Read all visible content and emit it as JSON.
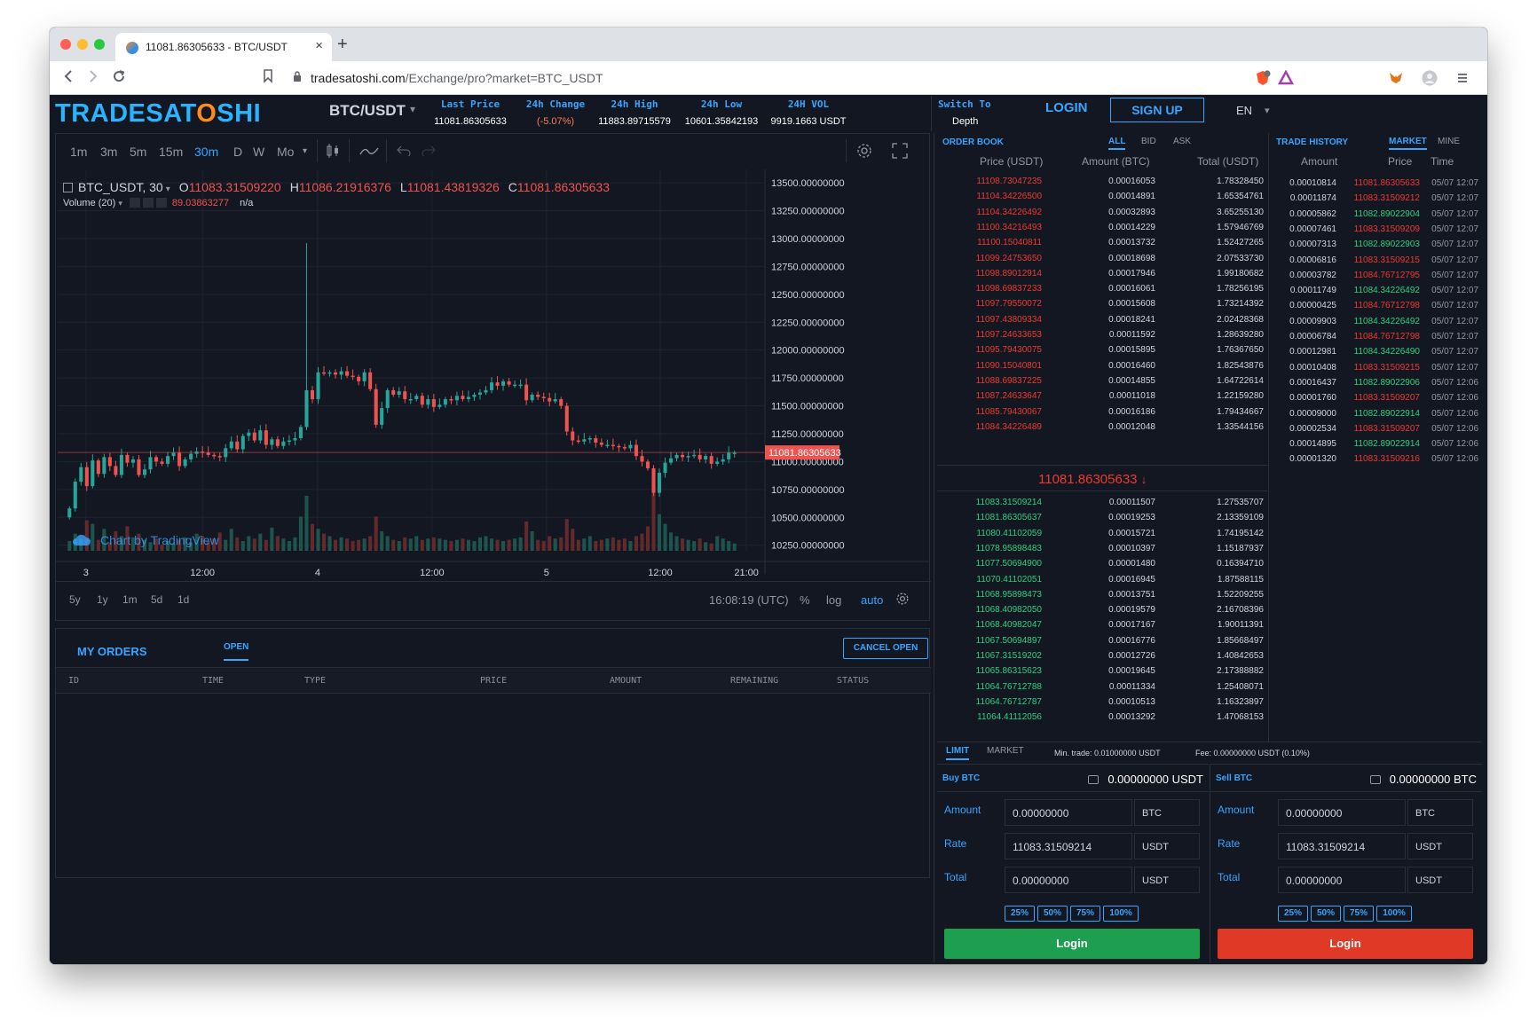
{
  "browser": {
    "tab_title": "11081.86305633 - BTC/USDT",
    "url_host": "tradesatoshi.com",
    "url_path": "/Exchange/pro?market=BTC_USDT",
    "close_glyph": "×",
    "new_tab_glyph": "+"
  },
  "header": {
    "logo_start": "TRADESAT",
    "logo_o": "O",
    "logo_end": "SHI",
    "pair": "BTC/USDT",
    "stats": [
      {
        "label": "Last Price",
        "value": "11081.86305633",
        "tone": "neutral"
      },
      {
        "label": "24h Change",
        "value": "(-5.07%)",
        "tone": "down"
      },
      {
        "label": "24h High",
        "value": "11883.89715579",
        "tone": "neutral"
      },
      {
        "label": "24h Low",
        "value": "10601.35842193",
        "tone": "neutral"
      },
      {
        "label": "24H VOL",
        "value": "9919.1663 USDT",
        "tone": "neutral"
      }
    ],
    "switch_label": "Switch To",
    "switch_value": "Depth",
    "login": "LOGIN",
    "signup": "SIGN UP",
    "language": "EN"
  },
  "chart_toolbar": {
    "intervals": [
      "1m",
      "3m",
      "5m",
      "15m",
      "30m",
      "D",
      "W",
      "Mo"
    ],
    "active_interval": "30m"
  },
  "chart_legend": {
    "symbol": "BTC_USDT, 30",
    "o_label": "O",
    "o": "11083.31509220",
    "h_label": "H",
    "h": "11086.21916376",
    "l_label": "L",
    "l": "11081.43819326",
    "c_label": "C",
    "c": "11081.86305633",
    "volume_label": "Volume (20)",
    "volume_value": "89.03863277",
    "volume_ma": "n/a",
    "watermark": "Chart by TradingView"
  },
  "chart_data": {
    "type": "candlestick",
    "price_axis": [
      "13500.00000000",
      "13250.00000000",
      "13000.00000000",
      "12750.00000000",
      "12500.00000000",
      "12250.00000000",
      "12000.00000000",
      "11750.00000000",
      "11500.00000000",
      "11250.00000000",
      "11000.00000000",
      "10750.00000000",
      "10500.00000000",
      "10250.00000000"
    ],
    "ylim": [
      10200,
      13620
    ],
    "time_axis": [
      {
        "label": "3",
        "pos": 0.04
      },
      {
        "label": "12:00",
        "pos": 0.205
      },
      {
        "label": "4",
        "pos": 0.368
      },
      {
        "label": "12:00",
        "pos": 0.53
      },
      {
        "label": "5",
        "pos": 0.692
      },
      {
        "label": "12:00",
        "pos": 0.853
      },
      {
        "label": "21:00",
        "pos": 0.975
      }
    ],
    "last_price": 11081.86305633,
    "last_price_label": "11081.86305633",
    "closes": [
      10580,
      10820,
      10950,
      10780,
      11010,
      10890,
      11040,
      10960,
      10880,
      11060,
      10990,
      11020,
      10880,
      10930,
      11040,
      11000,
      10980,
      11050,
      11080,
      10960,
      11020,
      11070,
      11090,
      11080,
      11060,
      11050,
      11040,
      11120,
      11180,
      11110,
      11230,
      11260,
      11190,
      11280,
      11150,
      11200,
      11140,
      11180,
      11190,
      11210,
      11310,
      11640,
      11560,
      11800,
      11790,
      11800,
      11780,
      11810,
      11770,
      11760,
      11720,
      11800,
      11650,
      11330,
      11480,
      11640,
      11600,
      11630,
      11560,
      11560,
      11590,
      11510,
      11560,
      11490,
      11510,
      11560,
      11550,
      11590,
      11560,
      11580,
      11600,
      11620,
      11640,
      11710,
      11680,
      11720,
      11690,
      11690,
      11690,
      11550,
      11600,
      11580,
      11570,
      11540,
      11560,
      11500,
      11270,
      11190,
      11180,
      11200,
      11210,
      11170,
      11150,
      11150,
      11140,
      11130,
      11120,
      11150,
      11050,
      11000,
      10940,
      10720,
      10900,
      10990,
      11030,
      11060,
      11040,
      11050,
      11060,
      11020,
      11050,
      10980,
      11000,
      11020,
      11080,
      11080
    ],
    "highs_extra": {
      "41": 12960
    },
    "volumes": [
      8,
      14,
      10,
      25,
      22,
      9,
      18,
      7,
      16,
      12,
      20,
      11,
      14,
      9,
      7,
      10,
      5,
      8,
      6,
      9,
      11,
      7,
      14,
      12,
      8,
      10,
      15,
      9,
      18,
      11,
      8,
      12,
      10,
      14,
      9,
      19,
      12,
      10,
      8,
      11,
      28,
      45,
      22,
      18,
      14,
      12,
      9,
      11,
      10,
      8,
      9,
      10,
      12,
      28,
      16,
      12,
      9,
      8,
      11,
      10,
      12,
      9,
      10,
      11,
      10,
      9,
      8,
      9,
      10,
      9,
      8,
      11,
      12,
      10,
      9,
      8,
      9,
      10,
      11,
      24,
      16,
      9,
      8,
      12,
      10,
      11,
      26,
      18,
      9,
      10,
      12,
      8,
      9,
      10,
      11,
      9,
      10,
      8,
      12,
      14,
      20,
      58,
      30,
      22,
      15,
      12,
      10,
      9,
      8,
      10,
      7,
      6,
      12,
      10,
      8,
      6
    ]
  },
  "range_bar": {
    "ranges": [
      "5y",
      "1y",
      "1m",
      "5d",
      "1d"
    ],
    "clock": "16:08:19 (UTC)",
    "percent": "%",
    "log": "log",
    "auto": "auto"
  },
  "orders": {
    "title": "MY ORDERS",
    "tab": "OPEN",
    "cancel": "CANCEL OPEN",
    "columns": [
      "ID",
      "TIME",
      "TYPE",
      "PRICE",
      "AMOUNT",
      "REMAINING",
      "STATUS"
    ]
  },
  "order_book": {
    "title": "ORDER BOOK",
    "tabs": [
      "ALL",
      "BID",
      "ASK"
    ],
    "columns": [
      "Price (USDT)",
      "Amount (BTC)",
      "Total (USDT)"
    ],
    "asks": [
      [
        "11108.73047235",
        "0.00016053",
        "1.78328450"
      ],
      [
        "11104.34226500",
        "0.00014891",
        "1.65354761"
      ],
      [
        "11104.34226492",
        "0.00032893",
        "3.65255130"
      ],
      [
        "11100.34216493",
        "0.00014229",
        "1.57946769"
      ],
      [
        "11100.15040811",
        "0.00013732",
        "1.52427265"
      ],
      [
        "11099.24753650",
        "0.00018698",
        "2.07533730"
      ],
      [
        "11098.89012914",
        "0.00017946",
        "1.99180682"
      ],
      [
        "11098.69837233",
        "0.00016061",
        "1.78256195"
      ],
      [
        "11097.79550072",
        "0.00015608",
        "1.73214392"
      ],
      [
        "11097.43809334",
        "0.00018241",
        "2.02428368"
      ],
      [
        "11097.24633653",
        "0.00011592",
        "1.28639280"
      ],
      [
        "11095.79430075",
        "0.00015895",
        "1.76367650"
      ],
      [
        "11090.15040801",
        "0.00016460",
        "1.82543876"
      ],
      [
        "11088.69837225",
        "0.00014855",
        "1.64722614"
      ],
      [
        "11087.24633647",
        "0.00011018",
        "1.22159280"
      ],
      [
        "11085.79430067",
        "0.00016186",
        "1.79434667"
      ],
      [
        "11084.34226489",
        "0.00012048",
        "1.33544156"
      ]
    ],
    "last": "11081.86305633",
    "last_arrow": "↓",
    "bids": [
      [
        "11083.31509214",
        "0.00011507",
        "1.27535707"
      ],
      [
        "11081.86305637",
        "0.00019253",
        "2.13359109"
      ],
      [
        "11080.41102059",
        "0.00015721",
        "1.74195142"
      ],
      [
        "11078.95898483",
        "0.00010397",
        "1.15187937"
      ],
      [
        "11077.50694900",
        "0.00001480",
        "0.16394710"
      ],
      [
        "11070.41102051",
        "0.00016945",
        "1.87588115"
      ],
      [
        "11068.95898473",
        "0.00013751",
        "1.52209255"
      ],
      [
        "11068.40982050",
        "0.00019579",
        "2.16708396"
      ],
      [
        "11068.40982047",
        "0.00017167",
        "1.90011391"
      ],
      [
        "11067.50694897",
        "0.00016776",
        "1.85668497"
      ],
      [
        "11067.31519202",
        "0.00012726",
        "1.40842653"
      ],
      [
        "11065.86315623",
        "0.00019645",
        "2.17388882"
      ],
      [
        "11064.76712788",
        "0.00011334",
        "1.25408071"
      ],
      [
        "11064.76712787",
        "0.00010513",
        "1.16323897"
      ],
      [
        "11064.41112056",
        "0.00013292",
        "1.47068153"
      ]
    ]
  },
  "trade_history": {
    "title": "TRADE HISTORY",
    "tabs": [
      "MARKET",
      "MINE"
    ],
    "columns": [
      "Amount",
      "Price",
      "Time"
    ],
    "rows": [
      [
        "0.00010814",
        "11081.86305633",
        "05/07 12:07",
        "down"
      ],
      [
        "0.00011874",
        "11083.31509212",
        "05/07 12:07",
        "down"
      ],
      [
        "0.00005862",
        "11082.89022904",
        "05/07 12:07",
        "up"
      ],
      [
        "0.00007461",
        "11083.31509209",
        "05/07 12:07",
        "down"
      ],
      [
        "0.00007313",
        "11082.89022903",
        "05/07 12:07",
        "up"
      ],
      [
        "0.00006816",
        "11083.31509215",
        "05/07 12:07",
        "down"
      ],
      [
        "0.00003782",
        "11084.76712795",
        "05/07 12:07",
        "down"
      ],
      [
        "0.00011749",
        "11084.34226492",
        "05/07 12:07",
        "up"
      ],
      [
        "0.00000425",
        "11084.76712798",
        "05/07 12:07",
        "down"
      ],
      [
        "0.00009903",
        "11084.34226492",
        "05/07 12:07",
        "up"
      ],
      [
        "0.00006784",
        "11084.76712798",
        "05/07 12:07",
        "down"
      ],
      [
        "0.00012981",
        "11084.34226490",
        "05/07 12:07",
        "up"
      ],
      [
        "0.00010408",
        "11083.31509215",
        "05/07 12:07",
        "down"
      ],
      [
        "0.00016437",
        "11082.89022906",
        "05/07 12:06",
        "up"
      ],
      [
        "0.00001760",
        "11083.31509207",
        "05/07 12:06",
        "down"
      ],
      [
        "0.00009000",
        "11082.89022914",
        "05/07 12:06",
        "up"
      ],
      [
        "0.00002534",
        "11083.31509207",
        "05/07 12:06",
        "down"
      ],
      [
        "0.00014895",
        "11082.89022914",
        "05/07 12:06",
        "up"
      ],
      [
        "0.00001320",
        "11083.31509216",
        "05/07 12:06",
        "down"
      ]
    ]
  },
  "trade_form": {
    "tabs": [
      "LIMIT",
      "MARKET"
    ],
    "min_trade": "Min. trade: 0.01000000 USDT",
    "fee": "Fee: 0.00000000 USDT (0.10%)",
    "buy": {
      "title": "Buy BTC",
      "balance": "0.00000000 USDT",
      "amount_label": "Amount",
      "amount": "0.00000000",
      "amount_unit": "BTC",
      "rate_label": "Rate",
      "rate": "11083.31509214",
      "rate_unit": "USDT",
      "total_label": "Total",
      "total": "0.00000000",
      "total_unit": "USDT",
      "button": "Login",
      "color": "#1e9e4f"
    },
    "sell": {
      "title": "Sell BTC",
      "balance": "0.00000000 BTC",
      "amount_label": "Amount",
      "amount": "0.00000000",
      "amount_unit": "BTC",
      "rate_label": "Rate",
      "rate": "11083.31509214",
      "rate_unit": "USDT",
      "total_label": "Total",
      "total": "0.00000000",
      "total_unit": "USDT",
      "button": "Login",
      "color": "#e03a26"
    },
    "percents": [
      "25%",
      "50%",
      "75%",
      "100%"
    ]
  },
  "colors": {
    "accent": "#38a5ff",
    "up": "#26a69a",
    "down": "#ef5350",
    "book_up": "#2bd17e",
    "book_down": "#f0392f"
  }
}
